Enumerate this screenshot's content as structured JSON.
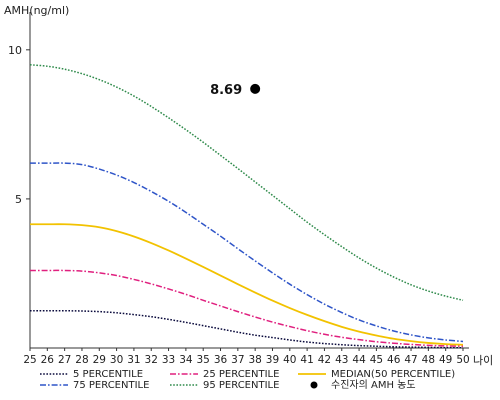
{
  "chart_data": {
    "type": "line",
    "ylabel": "AMH(ng/ml)",
    "xlabel": "나이",
    "ylim": [
      0,
      11
    ],
    "xlim": [
      25,
      50
    ],
    "yticks": [
      5,
      10
    ],
    "x": [
      25,
      26,
      27,
      28,
      29,
      30,
      31,
      32,
      33,
      34,
      35,
      36,
      37,
      38,
      39,
      40,
      41,
      42,
      43,
      44,
      45,
      46,
      47,
      48,
      49,
      50
    ],
    "grid": false,
    "legend_position": "bottom",
    "series": [
      {
        "name": "5 PERCENTILE",
        "color": "#0a0a3c",
        "dash": "dotted",
        "values": [
          1.25,
          1.25,
          1.25,
          1.24,
          1.22,
          1.18,
          1.12,
          1.05,
          0.96,
          0.86,
          0.75,
          0.64,
          0.53,
          0.43,
          0.35,
          0.27,
          0.2,
          0.15,
          0.11,
          0.08,
          0.06,
          0.04,
          0.03,
          0.02,
          0.01,
          0.01
        ]
      },
      {
        "name": "75 PERCENTILE",
        "color": "#2f55c8",
        "dash": "dashdot",
        "values": [
          6.2,
          6.2,
          6.2,
          6.15,
          6.0,
          5.8,
          5.55,
          5.25,
          4.92,
          4.55,
          4.15,
          3.75,
          3.33,
          2.92,
          2.52,
          2.14,
          1.79,
          1.47,
          1.19,
          0.94,
          0.74,
          0.57,
          0.44,
          0.34,
          0.27,
          0.22
        ]
      },
      {
        "name": "25 PERCENTILE",
        "color": "#e0207f",
        "dash": "dashdot",
        "values": [
          2.6,
          2.6,
          2.6,
          2.58,
          2.52,
          2.43,
          2.3,
          2.15,
          1.98,
          1.8,
          1.6,
          1.41,
          1.22,
          1.04,
          0.87,
          0.72,
          0.58,
          0.46,
          0.36,
          0.28,
          0.21,
          0.16,
          0.12,
          0.09,
          0.07,
          0.06
        ]
      },
      {
        "name": "95 PERCENTILE",
        "color": "#2e8a4a",
        "dash": "dotted",
        "values": [
          9.5,
          9.45,
          9.35,
          9.2,
          9.0,
          8.75,
          8.45,
          8.1,
          7.72,
          7.32,
          6.9,
          6.46,
          6.02,
          5.57,
          5.12,
          4.67,
          4.22,
          3.8,
          3.4,
          3.02,
          2.68,
          2.38,
          2.12,
          1.91,
          1.74,
          1.6
        ]
      },
      {
        "name": "MEDIAN(50 PERCENTILE)",
        "color": "#f2c200",
        "dash": "solid",
        "values": [
          4.15,
          4.15,
          4.15,
          4.12,
          4.05,
          3.92,
          3.74,
          3.52,
          3.27,
          3.0,
          2.72,
          2.43,
          2.14,
          1.86,
          1.59,
          1.34,
          1.11,
          0.9,
          0.71,
          0.55,
          0.42,
          0.31,
          0.23,
          0.17,
          0.13,
          0.11
        ]
      }
    ],
    "point": {
      "name": "수진자의 AMH 농도",
      "x": 38,
      "y": 8.69,
      "label": "8.69",
      "color": "#000000"
    }
  }
}
